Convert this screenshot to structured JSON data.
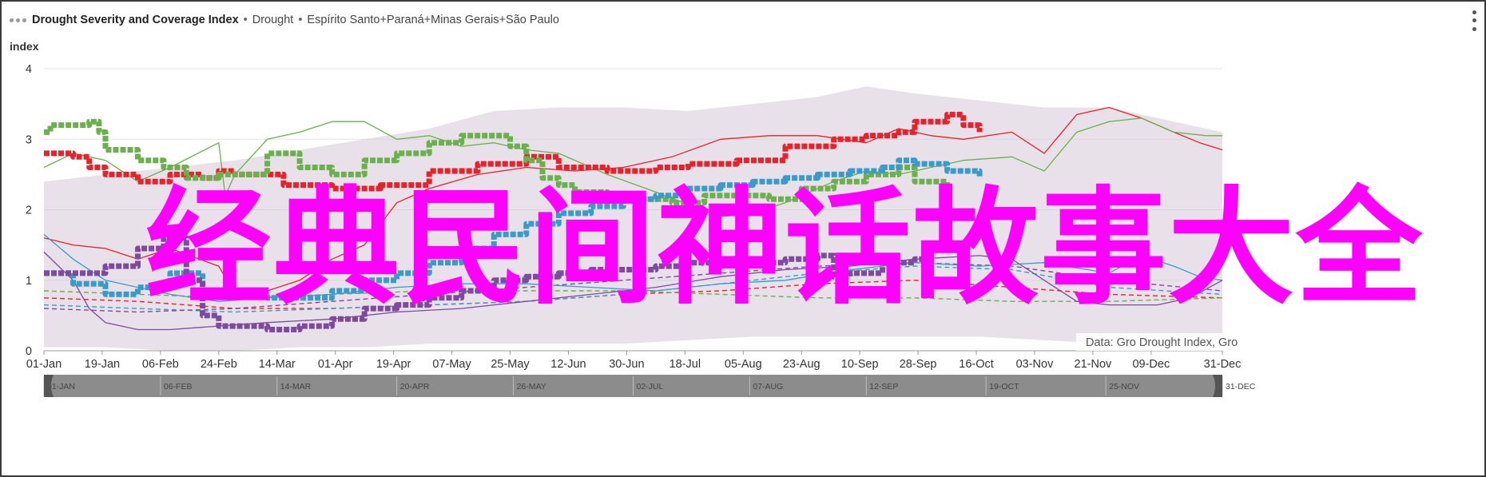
{
  "header": {
    "title": "Drought Severity and Coverage Index",
    "separator": "•",
    "product": "Drought",
    "regions": "Espírito Santo+Paraná+Minas Gerais+São Paulo"
  },
  "overlay_text": "经典民间神话故事大全",
  "colors": {
    "red": "#e8212b",
    "green": "#6ab04c",
    "blue": "#3a9bc8",
    "purple": "#7d4a9e",
    "band": "#d7c9d9",
    "grid": "#e3e3e3",
    "navigator_bg": "#8c8c8c",
    "overlay": "#ff00ff"
  },
  "chart_data": {
    "type": "line",
    "ylabel": "index",
    "ylim": [
      0,
      4
    ],
    "y_ticks": [
      "0",
      "1",
      "2",
      "3",
      "4"
    ],
    "x_ticks": [
      "01-Jan",
      "19-Jan",
      "06-Feb",
      "24-Feb",
      "14-Mar",
      "01-Apr",
      "19-Apr",
      "07-May",
      "25-May",
      "12-Jun",
      "30-Jun",
      "18-Jul",
      "05-Aug",
      "23-Aug",
      "10-Sep",
      "28-Sep",
      "16-Oct",
      "03-Nov",
      "21-Nov",
      "09-Dec",
      "31-Dec"
    ],
    "x_day_of_year": [
      1,
      19,
      37,
      55,
      73,
      91,
      109,
      127,
      145,
      163,
      181,
      199,
      217,
      235,
      253,
      271,
      289,
      307,
      325,
      343,
      365
    ],
    "navigator_ticks": [
      "01-JAN",
      "06-FEB",
      "14-MAR",
      "20-APR",
      "26-MAY",
      "02-JUL",
      "07-AUG",
      "12-SEP",
      "19-OCT",
      "25-NOV",
      "31-DEC"
    ],
    "navigator_day_of_year": [
      1,
      37,
      73,
      110,
      146,
      183,
      219,
      255,
      292,
      329,
      365
    ],
    "credit": "Data: Gro Drought Index, Gro",
    "series": [
      {
        "color": "#e8212b",
        "style": "bold",
        "x": [
          1,
          5,
          10,
          15,
          20,
          30,
          40,
          50,
          55,
          60,
          75,
          90,
          105,
          120,
          135,
          150,
          160,
          175,
          190,
          200,
          215,
          230,
          245,
          255,
          262,
          265,
          270,
          280,
          285,
          290
        ],
        "y": [
          2.8,
          2.8,
          2.75,
          2.6,
          2.5,
          2.4,
          2.5,
          2.45,
          2.55,
          2.5,
          2.35,
          2.3,
          2.35,
          2.55,
          2.65,
          2.75,
          2.6,
          2.55,
          2.6,
          2.65,
          2.7,
          2.9,
          3.0,
          3.05,
          3.05,
          3.1,
          3.25,
          3.35,
          3.2,
          3.1
        ]
      },
      {
        "color": "#6ab04c",
        "style": "bold",
        "x": [
          1,
          3,
          8,
          15,
          18,
          20,
          30,
          38,
          45,
          55,
          70,
          80,
          90,
          100,
          110,
          120,
          130,
          145,
          150,
          155,
          160,
          165,
          175,
          185,
          195,
          205,
          215,
          225,
          235,
          245,
          255,
          265,
          270,
          280
        ],
        "y": [
          3.1,
          3.2,
          3.2,
          3.25,
          3.1,
          2.85,
          2.7,
          2.6,
          2.45,
          2.5,
          2.8,
          2.6,
          2.5,
          2.7,
          2.8,
          2.95,
          3.05,
          2.9,
          2.7,
          2.45,
          2.35,
          2.25,
          2.2,
          2.15,
          2.1,
          2.2,
          2.2,
          2.15,
          2.3,
          2.4,
          2.5,
          2.6,
          2.4,
          1.85
        ]
      },
      {
        "color": "#3a9bc8",
        "style": "bold",
        "x": [
          1,
          10,
          20,
          30,
          40,
          50,
          60,
          70,
          80,
          90,
          100,
          110,
          120,
          130,
          140,
          150,
          160,
          170,
          180,
          190,
          200,
          210,
          220,
          230,
          240,
          250,
          260,
          265,
          270,
          280,
          290
        ],
        "y": [
          1.1,
          0.95,
          0.8,
          0.9,
          1.1,
          0.85,
          0.8,
          0.75,
          0.75,
          0.85,
          1.0,
          1.1,
          1.25,
          1.45,
          1.65,
          1.8,
          1.95,
          2.05,
          2.15,
          2.2,
          2.3,
          2.35,
          2.4,
          2.45,
          2.5,
          2.55,
          2.6,
          2.7,
          2.65,
          2.55,
          2.45
        ]
      },
      {
        "color": "#7d4a9e",
        "style": "bold",
        "x": [
          1,
          10,
          20,
          30,
          38,
          45,
          50,
          55,
          60,
          70,
          80,
          90,
          100,
          110,
          120,
          130,
          140,
          150,
          160,
          170,
          180,
          190,
          200,
          210,
          220,
          230,
          240,
          245,
          250,
          260,
          270,
          275,
          280
        ],
        "y": [
          1.1,
          1.1,
          1.2,
          1.45,
          1.6,
          1.0,
          0.5,
          0.35,
          0.35,
          0.3,
          0.35,
          0.45,
          0.6,
          0.65,
          0.75,
          0.85,
          1.0,
          1.05,
          1.1,
          1.15,
          1.15,
          1.2,
          1.25,
          1.3,
          1.25,
          1.3,
          1.35,
          1.05,
          1.1,
          1.25,
          1.3,
          1.45,
          1.5
        ]
      },
      {
        "color": "#e8212b",
        "style": "thin",
        "x": [
          1,
          10,
          20,
          30,
          40,
          55,
          60,
          70,
          80,
          90,
          100,
          110,
          120,
          135,
          150,
          165,
          180,
          195,
          210,
          225,
          240,
          255,
          265,
          275,
          285,
          300,
          310,
          320,
          330,
          340,
          350,
          358,
          365
        ],
        "y": [
          1.6,
          1.5,
          1.45,
          1.3,
          1.45,
          1.2,
          0.8,
          0.85,
          1.0,
          1.3,
          1.5,
          2.1,
          2.3,
          2.5,
          2.6,
          2.55,
          2.6,
          2.75,
          3.0,
          3.05,
          3.05,
          2.95,
          3.15,
          3.05,
          3.0,
          3.1,
          2.8,
          3.35,
          3.45,
          3.3,
          3.1,
          2.95,
          2.85
        ]
      },
      {
        "color": "#6ab04c",
        "style": "thin",
        "x": [
          1,
          10,
          20,
          30,
          40,
          55,
          57,
          60,
          70,
          80,
          90,
          100,
          110,
          120,
          130,
          140,
          150,
          160,
          175,
          190,
          210,
          220,
          230,
          245,
          255,
          265,
          275,
          285,
          300,
          310,
          320,
          330,
          340,
          350,
          360,
          365
        ],
        "y": [
          2.6,
          2.8,
          2.7,
          2.4,
          2.6,
          2.95,
          2.2,
          2.5,
          3.0,
          3.1,
          3.25,
          3.25,
          3.0,
          3.05,
          2.9,
          2.95,
          2.85,
          2.8,
          2.5,
          2.25,
          1.9,
          1.95,
          2.1,
          2.4,
          2.55,
          2.5,
          2.6,
          2.7,
          2.75,
          2.55,
          3.1,
          3.25,
          3.3,
          3.1,
          3.05,
          3.05
        ]
      },
      {
        "color": "#3a9bc8",
        "style": "thin",
        "x": [
          1,
          10,
          20,
          30,
          40,
          55,
          70,
          90,
          110,
          130,
          150,
          170,
          190,
          210,
          230,
          250,
          270,
          290,
          310,
          330,
          340,
          350,
          358,
          365
        ],
        "y": [
          1.65,
          1.3,
          1.0,
          0.9,
          0.8,
          0.7,
          0.75,
          0.8,
          0.9,
          0.95,
          0.95,
          0.9,
          0.85,
          0.95,
          1.0,
          1.15,
          1.25,
          1.2,
          1.25,
          1.1,
          1.35,
          1.2,
          1.05,
          1.0
        ]
      },
      {
        "color": "#7d4a9e",
        "style": "thin",
        "x": [
          1,
          10,
          15,
          20,
          30,
          40,
          55,
          70,
          90,
          110,
          130,
          150,
          170,
          190,
          210,
          230,
          250,
          270,
          290,
          300,
          310,
          320,
          330,
          345,
          355,
          365
        ],
        "y": [
          1.4,
          1.0,
          0.6,
          0.4,
          0.3,
          0.3,
          0.35,
          0.4,
          0.45,
          0.55,
          0.6,
          0.7,
          0.8,
          0.9,
          1.05,
          1.15,
          1.2,
          1.3,
          1.35,
          1.3,
          1.0,
          0.7,
          0.65,
          0.65,
          0.75,
          1.0
        ]
      },
      {
        "color": "#e8212b",
        "style": "dashed",
        "x": [
          1,
          30,
          60,
          90,
          120,
          150,
          180,
          210,
          240,
          270,
          300,
          330,
          365
        ],
        "y": [
          0.75,
          0.7,
          0.6,
          0.6,
          0.65,
          0.7,
          0.8,
          0.85,
          0.95,
          1.0,
          0.9,
          0.8,
          0.75
        ]
      },
      {
        "color": "#6ab04c",
        "style": "dashed",
        "x": [
          1,
          30,
          60,
          90,
          120,
          150,
          180,
          210,
          240,
          270,
          300,
          330,
          365
        ],
        "y": [
          0.85,
          0.8,
          0.75,
          0.8,
          0.85,
          0.85,
          0.85,
          0.8,
          0.75,
          0.75,
          0.7,
          0.7,
          0.75
        ]
      },
      {
        "color": "#3a9bc8",
        "style": "dashed",
        "x": [
          1,
          30,
          60,
          90,
          120,
          150,
          180,
          210,
          240,
          270,
          300,
          330,
          365
        ],
        "y": [
          0.65,
          0.6,
          0.55,
          0.6,
          0.65,
          0.7,
          0.8,
          0.95,
          1.1,
          1.2,
          1.15,
          0.9,
          0.8
        ]
      },
      {
        "color": "#7d4a9e",
        "style": "dashed",
        "x": [
          1,
          30,
          60,
          90,
          120,
          150,
          180,
          210,
          240,
          270,
          300,
          330,
          365
        ],
        "y": [
          0.6,
          0.55,
          0.6,
          0.7,
          0.8,
          0.9,
          1.0,
          1.1,
          1.2,
          1.25,
          1.2,
          1.0,
          0.85
        ]
      }
    ],
    "band": {
      "x": [
        1,
        20,
        40,
        60,
        80,
        100,
        120,
        140,
        160,
        180,
        200,
        220,
        240,
        255,
        270,
        290,
        310,
        330,
        345,
        365
      ],
      "upper": [
        2.4,
        2.5,
        2.6,
        2.7,
        2.85,
        3.0,
        3.15,
        3.4,
        3.45,
        3.45,
        3.4,
        3.5,
        3.6,
        3.75,
        3.65,
        3.55,
        3.45,
        3.45,
        3.3,
        3.1
      ],
      "lower": [
        0.05,
        0.05,
        0.0,
        0.0,
        0.05,
        0.05,
        0.1,
        0.1,
        0.1,
        0.1,
        0.15,
        0.2,
        0.2,
        0.2,
        0.2,
        0.2,
        0.15,
        0.1,
        0.1,
        0.1
      ]
    }
  }
}
